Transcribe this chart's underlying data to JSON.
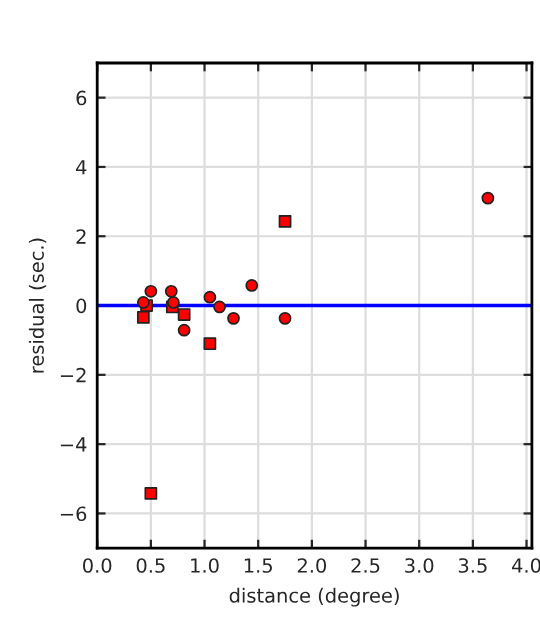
{
  "chart_data": {
    "type": "scatter",
    "xlabel": "distance (degree)",
    "ylabel": "residual (sec.)",
    "xlim": [
      0,
      4.05
    ],
    "ylim": [
      -7,
      7
    ],
    "xticks": [
      {
        "value": 0,
        "label": "0.0"
      },
      {
        "value": 0.5,
        "label": "0.5"
      },
      {
        "value": 1,
        "label": "1.0"
      },
      {
        "value": 1.5,
        "label": "1.5"
      },
      {
        "value": 2,
        "label": "2.0"
      },
      {
        "value": 2.5,
        "label": "2.5"
      },
      {
        "value": 3,
        "label": "3.0"
      },
      {
        "value": 3.5,
        "label": "3.5"
      },
      {
        "value": 4,
        "label": "4.0"
      }
    ],
    "yticks": [
      {
        "value": -6,
        "label": "−6"
      },
      {
        "value": -4,
        "label": "−4"
      },
      {
        "value": -2,
        "label": "−2"
      },
      0,
      2,
      4,
      6
    ],
    "grid": true,
    "series": [
      {
        "color": "#ff0000",
        "marker": "circle",
        "x": [
          0.43,
          0.5,
          0.69,
          0.71,
          0.81,
          1.05,
          1.14,
          1.27,
          1.44,
          1.75,
          3.64
        ],
        "values": [
          0.09,
          0.41,
          0.41,
          0.09,
          -0.71,
          0.24,
          -0.04,
          -0.37,
          0.58,
          -0.37,
          3.1
        ]
      },
      {
        "color": "#ff0000",
        "marker": "square",
        "x": [
          0.43,
          0.46,
          0.7,
          0.81,
          1.05,
          1.75,
          0.5
        ],
        "values": [
          -0.34,
          0.0,
          -0.04,
          -0.26,
          -1.1,
          2.43,
          -5.42
        ]
      }
    ],
    "ref_lines": [
      {
        "axis": "y",
        "value": 0,
        "color": "#0000ff"
      }
    ]
  }
}
